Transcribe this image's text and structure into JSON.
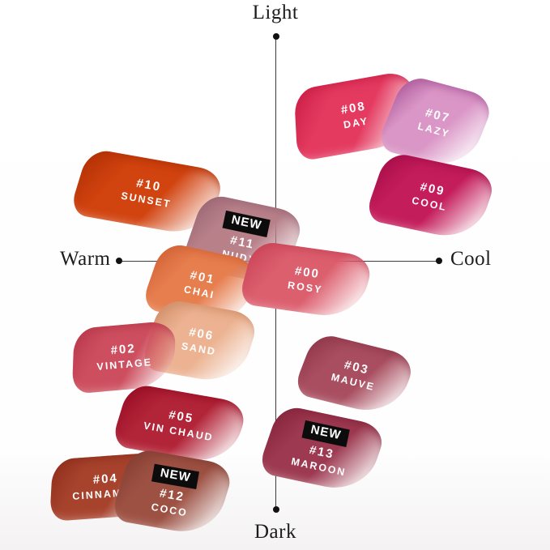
{
  "axes": {
    "top": "Light",
    "bottom": "Dark",
    "left": "Warm",
    "right": "Cool"
  },
  "badge_label": "NEW",
  "shades": [
    {
      "number": "#08",
      "name": "DAY",
      "color": "#e43a60",
      "color_dark": "#cc2048",
      "is_new": false
    },
    {
      "number": "#07",
      "name": "LAZY",
      "color": "#da96c6",
      "color_dark": "#ad5c9d",
      "is_new": false
    },
    {
      "number": "#10",
      "name": "SUNSET",
      "color": "#d1430f",
      "color_dark": "#b33106",
      "is_new": false
    },
    {
      "number": "#09",
      "name": "COOL",
      "color": "#c41d5b",
      "color_dark": "#a80f4a",
      "is_new": false
    },
    {
      "number": "#11",
      "name": "NUDY",
      "color": "#b8818a",
      "color_dark": "#9c6875",
      "is_new": true
    },
    {
      "number": "#01",
      "name": "CHAI",
      "color": "#e67e4e",
      "color_dark": "#d26336",
      "is_new": false
    },
    {
      "number": "#00",
      "name": "ROSY",
      "color": "#dc5f6e",
      "color_dark": "#c94558",
      "is_new": false
    },
    {
      "number": "#06",
      "name": "SAND",
      "color": "#ecb291",
      "color_dark": "#d18e69",
      "is_new": false
    },
    {
      "number": "#02",
      "name": "VINTAGE",
      "color": "#cd4f5f",
      "color_dark": "#ba3a4d",
      "is_new": false
    },
    {
      "number": "#03",
      "name": "MAUVE",
      "color": "#a84e60",
      "color_dark": "#92384c",
      "is_new": false
    },
    {
      "number": "#05",
      "name": "VIN CHAUD",
      "color": "#b22438",
      "color_dark": "#990f26",
      "is_new": false
    },
    {
      "number": "#13",
      "name": "MAROON",
      "color": "#9d3950",
      "color_dark": "#86263e",
      "is_new": true
    },
    {
      "number": "#04",
      "name": "CINNAMON",
      "color": "#a7432d",
      "color_dark": "#90301d",
      "is_new": false
    },
    {
      "number": "#12",
      "name": "COCO",
      "color": "#9d5143",
      "color_dark": "#853f33",
      "is_new": true
    }
  ],
  "chart_data": {
    "type": "scatter",
    "title": "",
    "xlabel_left": "Warm",
    "xlabel_right": "Cool",
    "ylabel_top": "Light",
    "ylabel_bottom": "Dark",
    "xlim": [
      -1,
      1
    ],
    "ylim": [
      -1,
      1
    ],
    "grid": false,
    "legend_position": "none",
    "points": [
      {
        "label": "#08",
        "name": "DAY",
        "x": 0.49,
        "y": 0.62,
        "color": "#e43a60",
        "is_new": false
      },
      {
        "label": "#07",
        "name": "LAZY",
        "x": 0.98,
        "y": 0.59,
        "color": "#da96c6",
        "is_new": false
      },
      {
        "label": "#10",
        "name": "SUNSET",
        "x": -0.8,
        "y": 0.29,
        "color": "#d1430f",
        "is_new": false
      },
      {
        "label": "#09",
        "name": "COOL",
        "x": 0.96,
        "y": 0.27,
        "color": "#c41d5b",
        "is_new": false
      },
      {
        "label": "#11",
        "name": "NUDY",
        "x": -0.21,
        "y": 0.09,
        "color": "#b8818a",
        "is_new": true
      },
      {
        "label": "#01",
        "name": "CHAI",
        "x": -0.47,
        "y": -0.1,
        "color": "#e67e4e",
        "is_new": false
      },
      {
        "label": "#00",
        "name": "ROSY",
        "x": 0.19,
        "y": -0.08,
        "color": "#dc5f6e",
        "is_new": false
      },
      {
        "label": "#06",
        "name": "SAND",
        "x": -0.47,
        "y": -0.34,
        "color": "#ecb291",
        "is_new": false
      },
      {
        "label": "#02",
        "name": "VINTAGE",
        "x": -0.94,
        "y": -0.41,
        "color": "#cd4f5f",
        "is_new": false
      },
      {
        "label": "#03",
        "name": "MAUVE",
        "x": 0.49,
        "y": -0.49,
        "color": "#a84e60",
        "is_new": false
      },
      {
        "label": "#05",
        "name": "VIN CHAUD",
        "x": -0.6,
        "y": -0.7,
        "color": "#b22438",
        "is_new": false
      },
      {
        "label": "#13",
        "name": "MAROON",
        "x": 0.29,
        "y": -0.8,
        "color": "#9d3950",
        "is_new": true
      },
      {
        "label": "#04",
        "name": "CINNAMON",
        "x": -1.0,
        "y": -0.96,
        "color": "#a7432d",
        "is_new": false
      },
      {
        "label": "#12",
        "name": "COCO",
        "x": -0.64,
        "y": -0.98,
        "color": "#9d5143",
        "is_new": true
      }
    ]
  }
}
